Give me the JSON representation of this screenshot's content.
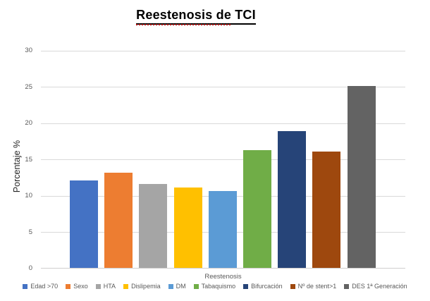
{
  "title": "Reestenosis de TCI",
  "axes": {
    "y_label": "Porcentaje %",
    "x_label": "Reestenosis",
    "y_ticks": [
      0,
      5,
      10,
      15,
      20,
      25,
      30
    ]
  },
  "chart_data": {
    "type": "bar",
    "title": "Reestenosis de TCI",
    "xlabel": "Reestenosis",
    "ylabel": "Porcentaje %",
    "ylim": [
      0,
      30
    ],
    "grid": "horizontal",
    "legend_position": "bottom",
    "categories": [
      "Reestenosis"
    ],
    "series": [
      {
        "name": "Edad >70",
        "values": [
          12.0
        ],
        "color": "#4472C4"
      },
      {
        "name": "Sexo",
        "values": [
          13.1
        ],
        "color": "#ED7D31"
      },
      {
        "name": "HTA",
        "values": [
          11.6
        ],
        "color": "#A5A5A5"
      },
      {
        "name": "Dislipemia",
        "values": [
          11.1
        ],
        "color": "#FFC000"
      },
      {
        "name": "DM",
        "values": [
          10.6
        ],
        "color": "#5B9BD5"
      },
      {
        "name": "Tabaquismo",
        "values": [
          16.2
        ],
        "color": "#70AD47"
      },
      {
        "name": "Bifurcación",
        "values": [
          18.8
        ],
        "color": "#264478"
      },
      {
        "name": "Nº de stent>1",
        "values": [
          16.0
        ],
        "color": "#9E480E"
      },
      {
        "name": "DES 1ª Generación",
        "values": [
          25.0
        ],
        "color": "#636363"
      }
    ]
  }
}
